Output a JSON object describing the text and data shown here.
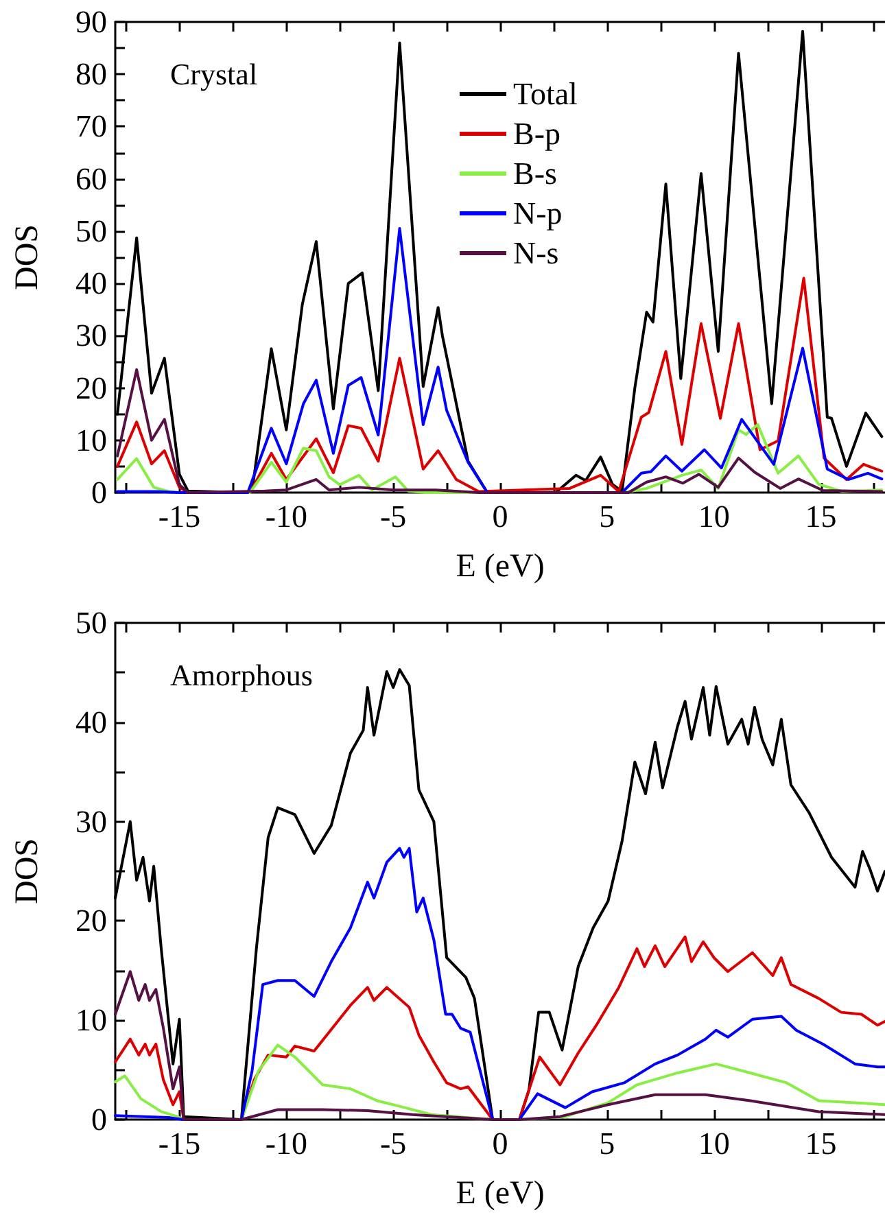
{
  "chart_data": [
    {
      "type": "line",
      "xlabel": "E (eV)",
      "ylabel": "DOS",
      "annotations": [
        "Crystal"
      ],
      "xlim": [
        -18,
        18
      ],
      "ylim": [
        0,
        90
      ],
      "xticks": [
        {
          "value": -17.5,
          "label": null
        },
        -15,
        {
          "value": -12.5,
          "label": null
        },
        -10,
        {
          "value": -7.5,
          "label": null
        },
        -5,
        {
          "value": -2.5,
          "label": null
        },
        0,
        {
          "value": 2.5,
          "label": null
        },
        5,
        {
          "value": 7.5,
          "label": null
        },
        10,
        {
          "value": 12.5,
          "label": null
        },
        15,
        {
          "value": 17.5,
          "label": null
        }
      ],
      "yticks": [
        0,
        {
          "value": 5,
          "label": null
        },
        10,
        {
          "value": 15,
          "label": null
        },
        20,
        {
          "value": 25,
          "label": null
        },
        30,
        {
          "value": 35,
          "label": null
        },
        40,
        {
          "value": 45,
          "label": null
        },
        50,
        {
          "value": 55,
          "label": null
        },
        60,
        {
          "value": 65,
          "label": null
        },
        70,
        {
          "value": 75,
          "label": null
        },
        80,
        {
          "value": 85,
          "label": null
        },
        90
      ],
      "grid": false,
      "legend": "top",
      "series": [
        {
          "name": "Total",
          "color": "#000000",
          "x": [
            -17.9,
            -17.0,
            -16.3,
            -15.7,
            -15.0,
            -14.6,
            -12.0,
            -11.6,
            -10.7,
            -10.0,
            -9.25,
            -8.6,
            -7.8,
            -7.1,
            -6.45,
            -5.7,
            -4.7,
            -3.6,
            -2.9,
            -2.7,
            -1.5,
            -0.6,
            2.6,
            3.55,
            4.0,
            4.7,
            5.25,
            5.7,
            6.3,
            6.85,
            7.15,
            7.75,
            8.45,
            9.4,
            10.2,
            11.15,
            12.7,
            14.15,
            15.3,
            15.5,
            16.2,
            17.1,
            17.85
          ],
          "values": [
            15,
            48.7,
            19,
            25.7,
            3.5,
            0.3,
            0,
            0.3,
            27.5,
            12,
            36,
            48,
            16,
            40,
            42,
            19.5,
            86,
            20.3,
            35.4,
            30,
            6,
            0,
            0,
            3.3,
            2.3,
            6.8,
            1.6,
            0.2,
            20,
            34.5,
            32.6,
            59,
            21.8,
            61,
            27,
            84,
            17,
            88.2,
            14.4,
            14.2,
            5,
            15.2,
            10.7
          ]
        },
        {
          "name": "B-p",
          "color": "#dd0000",
          "x": [
            -17.9,
            -17.0,
            -16.3,
            -15.7,
            -15.0,
            -14.6,
            -11.7,
            -10.7,
            -10.0,
            -8.6,
            -7.8,
            -7.1,
            -6.5,
            -5.7,
            -4.7,
            -3.6,
            -2.9,
            -2.05,
            -1.0,
            3.25,
            4.7,
            5.55,
            6.6,
            6.95,
            7.75,
            8.5,
            9.4,
            10.3,
            11.15,
            12.15,
            13.0,
            14.2,
            15.15,
            16.2,
            17.0,
            17.85
          ],
          "values": [
            5,
            13.5,
            5.5,
            8,
            1,
            0,
            0,
            7.5,
            2.5,
            10.3,
            3.8,
            12.8,
            12.3,
            6,
            25.7,
            4.5,
            8,
            2.5,
            0.2,
            0.8,
            3.3,
            0.2,
            14.4,
            15.3,
            27,
            9.2,
            32.3,
            14.2,
            32.3,
            8.2,
            9.9,
            41,
            6.6,
            2.5,
            5.4,
            4.1
          ]
        },
        {
          "name": "B-s",
          "color": "#88ee44",
          "x": [
            -17.9,
            -17.0,
            -16.2,
            -15.5,
            -15.0,
            -11.7,
            -10.7,
            -10.0,
            -9.2,
            -8.6,
            -8.0,
            -7.5,
            -6.6,
            -6.0,
            -4.9,
            -4.3,
            -3.5,
            5.8,
            6.85,
            8.5,
            9.4,
            10.2,
            11.15,
            11.5,
            12.05,
            13.0,
            13.95,
            14.9,
            16.0,
            17.85
          ],
          "values": [
            2.5,
            6.5,
            1,
            0.2,
            0,
            0,
            5.8,
            2,
            8.5,
            8,
            3,
            1.5,
            3.3,
            0.5,
            3,
            0.3,
            0,
            0,
            0.8,
            3.3,
            4.3,
            0.8,
            12,
            11.1,
            13,
            3.7,
            7,
            1.6,
            0.2,
            0.5
          ]
        },
        {
          "name": "N-p",
          "color": "#0000ff",
          "x": [
            -17.9,
            -16.0,
            -15.0,
            -11.8,
            -10.7,
            -10.0,
            -9.2,
            -8.6,
            -7.8,
            -7.1,
            -6.5,
            -5.7,
            -4.7,
            -3.6,
            -2.9,
            -2.5,
            -1.5,
            -0.6,
            4.5,
            5.7,
            6.6,
            7.05,
            7.75,
            8.5,
            9.55,
            10.35,
            11.3,
            12.8,
            14.15,
            15.3,
            16.3,
            17.2,
            17.85
          ],
          "values": [
            0.2,
            0.2,
            0,
            0,
            12.3,
            5.5,
            17,
            21.5,
            7.5,
            20.5,
            22,
            11,
            50.5,
            13,
            24,
            15.7,
            5.8,
            0,
            0,
            0,
            3.7,
            4,
            7,
            4.1,
            8.2,
            4.7,
            14,
            5.4,
            27.6,
            4.5,
            2.5,
            3.7,
            2.6
          ]
        },
        {
          "name": "N-s",
          "color": "#551144",
          "x": [
            -17.9,
            -17.0,
            -16.3,
            -15.7,
            -15.0,
            -14.6,
            -11.0,
            -10.0,
            -8.6,
            -8.0,
            -6.6,
            -5.0,
            -3.0,
            -1.0,
            6.0,
            6.85,
            7.75,
            8.55,
            9.3,
            10.2,
            11.15,
            11.9,
            13.1,
            13.95,
            15.1,
            17.85
          ],
          "values": [
            7,
            23.5,
            10,
            14,
            1.5,
            0,
            0.3,
            0.5,
            2.5,
            0.5,
            1,
            0.5,
            0.5,
            0,
            0,
            2,
            3,
            1.8,
            3.5,
            1,
            6.6,
            3.9,
            0.8,
            2.6,
            0.4,
            0.2
          ]
        }
      ]
    },
    {
      "type": "line",
      "xlabel": "E (eV)",
      "ylabel": "DOS",
      "annotations": [
        "Amorphous"
      ],
      "xlim": [
        -18,
        18
      ],
      "ylim": [
        0,
        50
      ],
      "xticks": [
        {
          "value": -17.5,
          "label": null
        },
        -15,
        {
          "value": -12.5,
          "label": null
        },
        -10,
        {
          "value": -7.5,
          "label": null
        },
        -5,
        {
          "value": -2.5,
          "label": null
        },
        0,
        {
          "value": 2.5,
          "label": null
        },
        5,
        {
          "value": 7.5,
          "label": null
        },
        10,
        {
          "value": 12.5,
          "label": null
        },
        15,
        {
          "value": 17.5,
          "label": null
        }
      ],
      "yticks": [
        0,
        {
          "value": 5,
          "label": null
        },
        10,
        {
          "value": 15,
          "label": null
        },
        20,
        {
          "value": 25,
          "label": null
        },
        30,
        {
          "value": 35,
          "label": null
        },
        40,
        {
          "value": 45,
          "label": null
        },
        50
      ],
      "grid": false,
      "legend": false,
      "series": [
        {
          "color": "#000000",
          "x": [
            -18,
            -17.3,
            -17,
            -16.7,
            -16.4,
            -16.2,
            -15.85,
            -15.3,
            -15,
            -14.8,
            -12.1,
            -11.4,
            -10.85,
            -10.4,
            -9.6,
            -8.7,
            -7.9,
            -7,
            -6.4,
            -6.2,
            -5.9,
            -5.3,
            -5,
            -4.7,
            -4.25,
            -3.8,
            -3.1,
            -2.5,
            -1.6,
            -1.2,
            -0.35,
            0.9,
            1.35,
            1.8,
            2.3,
            2.9,
            3.65,
            4.35,
            5.05,
            5.7,
            6.3,
            6.8,
            7.25,
            7.6,
            8.3,
            8.65,
            8.95,
            9.5,
            9.8,
            10.1,
            10.65,
            11.3,
            11.6,
            11.9,
            12.25,
            12.75,
            13.15,
            13.6,
            14.45,
            15.5,
            16.6,
            16.95,
            17.3,
            17.65,
            18
          ],
          "values": [
            22.3,
            30,
            24.1,
            26.4,
            22,
            25.5,
            17.2,
            5.6,
            10.1,
            0.3,
            0,
            17.2,
            28.4,
            31.4,
            30.7,
            26.8,
            29.6,
            36.9,
            39.2,
            43.5,
            38.7,
            45.1,
            43.5,
            45.3,
            43.7,
            33.2,
            30,
            16.3,
            14.3,
            12.2,
            0,
            0,
            3,
            10.8,
            10.8,
            7,
            15.4,
            19.3,
            22,
            28,
            36,
            32.8,
            38,
            33.4,
            39.6,
            42.1,
            38.3,
            43.5,
            38.7,
            43.6,
            37.8,
            40.3,
            37.8,
            41.5,
            38.3,
            35.7,
            40.3,
            33.7,
            30.9,
            26.4,
            23.4,
            27,
            25.2,
            23,
            25
          ]
        },
        {
          "color": "#dd0000",
          "x": [
            -18,
            -17.3,
            -16.9,
            -16.6,
            -16.4,
            -16.1,
            -15.75,
            -15.3,
            -15,
            -14.8,
            -12.1,
            -11.5,
            -10.85,
            -10,
            -9.6,
            -8.7,
            -7,
            -6.2,
            -5.9,
            -5.3,
            -4.25,
            -3.8,
            -3.1,
            -2.5,
            -1.85,
            -1.5,
            -0.35,
            0.9,
            1.85,
            2.8,
            3.65,
            4.5,
            5.55,
            6.4,
            6.75,
            7.25,
            7.7,
            8.65,
            8.95,
            9.5,
            10,
            10.65,
            11.8,
            12.75,
            13.15,
            13.6,
            14.9,
            15.95,
            16.9,
            17.65,
            18
          ],
          "values": [
            5.8,
            8.1,
            6.5,
            7.6,
            6.5,
            7.6,
            4,
            1.5,
            2.8,
            0,
            0,
            4,
            6.5,
            6.3,
            7.4,
            6.9,
            11.5,
            13.3,
            12,
            13.3,
            11.3,
            8.5,
            5.8,
            3.7,
            3.1,
            3.3,
            0,
            0,
            6.3,
            3.5,
            6.7,
            9.5,
            13.3,
            17.2,
            15.4,
            17.5,
            15.4,
            18.4,
            15.9,
            17.9,
            16.3,
            14.9,
            16.8,
            14.5,
            16.3,
            13.6,
            12.2,
            10.8,
            10.6,
            9.5,
            9.9
          ]
        },
        {
          "color": "#88ee44",
          "x": [
            -18,
            -17.55,
            -16.8,
            -15.85,
            -15.1,
            -14.8,
            -12.1,
            -11.3,
            -10.4,
            -9.6,
            -8.3,
            -7,
            -5.75,
            -4.45,
            -3.2,
            -0.35,
            0.9,
            3.05,
            5.05,
            6.4,
            8.3,
            10.1,
            11.7,
            13.4,
            14.9,
            16.6,
            18
          ],
          "values": [
            3.8,
            4.4,
            2.1,
            0.8,
            0.3,
            0,
            0,
            4.9,
            7.5,
            6.3,
            3.5,
            3.1,
            1.9,
            1.2,
            0.5,
            0,
            0,
            0.3,
            1.7,
            3.5,
            4.7,
            5.6,
            4.7,
            3.7,
            1.9,
            1.7,
            1.5
          ]
        },
        {
          "color": "#0000ff",
          "x": [
            -18,
            -15.5,
            -14.8,
            -12.1,
            -11.6,
            -11.1,
            -10.4,
            -9.6,
            -8.7,
            -7.9,
            -7,
            -6.2,
            -5.9,
            -5.3,
            -4.7,
            -4.5,
            -4.25,
            -3.9,
            -3.6,
            -3.1,
            -2.55,
            -2.25,
            -1.85,
            -1.4,
            -0.35,
            0.9,
            1.75,
            3.05,
            4.3,
            5.8,
            7.25,
            8.3,
            9.6,
            10.1,
            10.65,
            11.8,
            13.15,
            13.85,
            15.1,
            16.6,
            17.65,
            18
          ],
          "values": [
            0.4,
            0.2,
            0,
            0,
            4.9,
            13.6,
            14,
            14,
            12.4,
            15.9,
            19.3,
            23.9,
            22.3,
            25.9,
            27.3,
            26.4,
            27.3,
            20.9,
            22.3,
            18.1,
            10.6,
            10.6,
            9.2,
            8.8,
            0,
            0,
            2.6,
            1.2,
            2.8,
            3.7,
            5.6,
            6.5,
            8.1,
            9,
            8.3,
            10.1,
            10.4,
            9,
            7.6,
            5.6,
            5.3,
            5.3
          ]
        },
        {
          "color": "#551144",
          "x": [
            -18,
            -17.3,
            -16.9,
            -16.6,
            -16.4,
            -16.1,
            -15.75,
            -15.3,
            -15,
            -14.8,
            -12.1,
            -10.4,
            -8.3,
            -6.2,
            -4.1,
            -0.35,
            0.9,
            2.8,
            5.05,
            7.25,
            9.6,
            11.7,
            14.9,
            18
          ],
          "values": [
            10.6,
            14.9,
            12,
            13.6,
            12,
            13.1,
            9.2,
            3.1,
            5.3,
            0,
            0,
            1,
            1,
            0.9,
            0.5,
            0,
            0,
            0.3,
            1.5,
            2.5,
            2.5,
            1.9,
            0.8,
            0.5
          ]
        }
      ]
    }
  ]
}
